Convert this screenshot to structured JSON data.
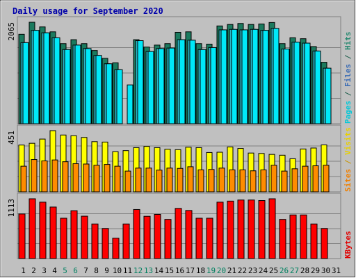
{
  "chart_data": {
    "type": "bar",
    "title": "Daily usage for September 2020",
    "categories": [
      "1",
      "2",
      "3",
      "4",
      "5",
      "6",
      "7",
      "8",
      "9",
      "10",
      "11",
      "12",
      "13",
      "14",
      "15",
      "16",
      "17",
      "18",
      "19",
      "20",
      "21",
      "22",
      "23",
      "24",
      "25",
      "26",
      "27",
      "28",
      "29",
      "30",
      "31"
    ],
    "weekend_days": [
      "5",
      "6",
      "12",
      "13",
      "19",
      "20",
      "26",
      "27"
    ],
    "panels": [
      {
        "id": "hits",
        "max_label": "2065",
        "ylim": [
          0,
          2065
        ],
        "side_labels": [
          {
            "text": "Pages",
            "color": "#00c8d8"
          },
          {
            "text": " / ",
            "color": "#1b5c4a"
          },
          {
            "text": "Files",
            "color": "#3a6cb4"
          },
          {
            "text": " / ",
            "color": "#1b5c4a"
          },
          {
            "text": "Hits",
            "color": "#2a8a72"
          }
        ],
        "series": [
          {
            "name": "Hits",
            "color": "#1b7a5e",
            "values": [
              1820,
              2065,
              1970,
              1870,
              1630,
              1710,
              1630,
              1490,
              1330,
              1240,
              0,
              1710,
              1560,
              1600,
              1630,
              1860,
              1870,
              1630,
              1620,
              1990,
              2020,
              2040,
              2020,
              2030,
              2060,
              1630,
              1750,
              1730,
              1570,
              1250,
              0
            ]
          },
          {
            "name": "Files",
            "color": "#2ab8c8",
            "values": [
              1650,
              1900,
              1850,
              1750,
              1510,
              1600,
              1530,
              1390,
              1220,
              1100,
              0,
              1690,
              1470,
              1530,
              1540,
              1710,
              1700,
              1510,
              1550,
              1910,
              1920,
              1910,
              1920,
              1900,
              1940,
              1520,
              1660,
              1640,
              1480,
              1130,
              0
            ]
          },
          {
            "name": "Pages",
            "color": "#00e8f8",
            "values": [
              1650,
              1900,
              1850,
              1750,
              1510,
              1600,
              1530,
              1390,
              1220,
              1100,
              790,
              1690,
              1470,
              1530,
              1540,
              1710,
              1700,
              1510,
              1550,
              1910,
              1920,
              1910,
              1920,
              1900,
              1940,
              1520,
              1660,
              1640,
              1480,
              1130,
              0
            ]
          }
        ],
        "stack_offset": {
          "Pages": 6
        }
      },
      {
        "id": "visits",
        "max_label": "451",
        "ylim": [
          0,
          451
        ],
        "side_labels": [
          {
            "text": "Sites",
            "color": "#f08000"
          },
          {
            "text": " / ",
            "color": "#c89600"
          },
          {
            "text": "Visits",
            "color": "#e8d000"
          }
        ],
        "series": [
          {
            "name": "Visits",
            "color": "#ffff00",
            "values": [
              345,
              358,
              389,
              451,
              419,
              414,
              401,
              370,
              367,
              296,
              304,
              326,
              335,
              326,
              314,
              311,
              329,
              326,
              290,
              292,
              331,
              320,
              286,
              283,
              276,
              270,
              244,
              316,
              323,
              346,
              0
            ]
          },
          {
            "name": "Sites",
            "color": "#ff8c00",
            "values": [
              189,
              238,
              228,
              235,
              222,
              208,
              205,
              196,
              202,
              189,
              153,
              175,
              175,
              160,
              175,
              173,
              185,
              162,
              165,
              175,
              162,
              162,
              155,
              162,
              196,
              153,
              170,
              189,
              192,
              196,
              0
            ]
          }
        ]
      },
      {
        "id": "kbytes",
        "max_label": "1113",
        "ylim": [
          0,
          1113
        ],
        "side_labels": [
          {
            "text": "KBytes",
            "color": "#e00000"
          }
        ],
        "series": [
          {
            "name": "KBytes",
            "color": "#ff0000",
            "values": [
              830,
              1113,
              1050,
              959,
              751,
              891,
              789,
              644,
              560,
              380,
              644,
              913,
              787,
              822,
              729,
              934,
              895,
              751,
              751,
              1050,
              1070,
              1090,
              1090,
              1080,
              1113,
              729,
              812,
              812,
              644,
              560,
              0
            ]
          }
        ]
      }
    ]
  }
}
